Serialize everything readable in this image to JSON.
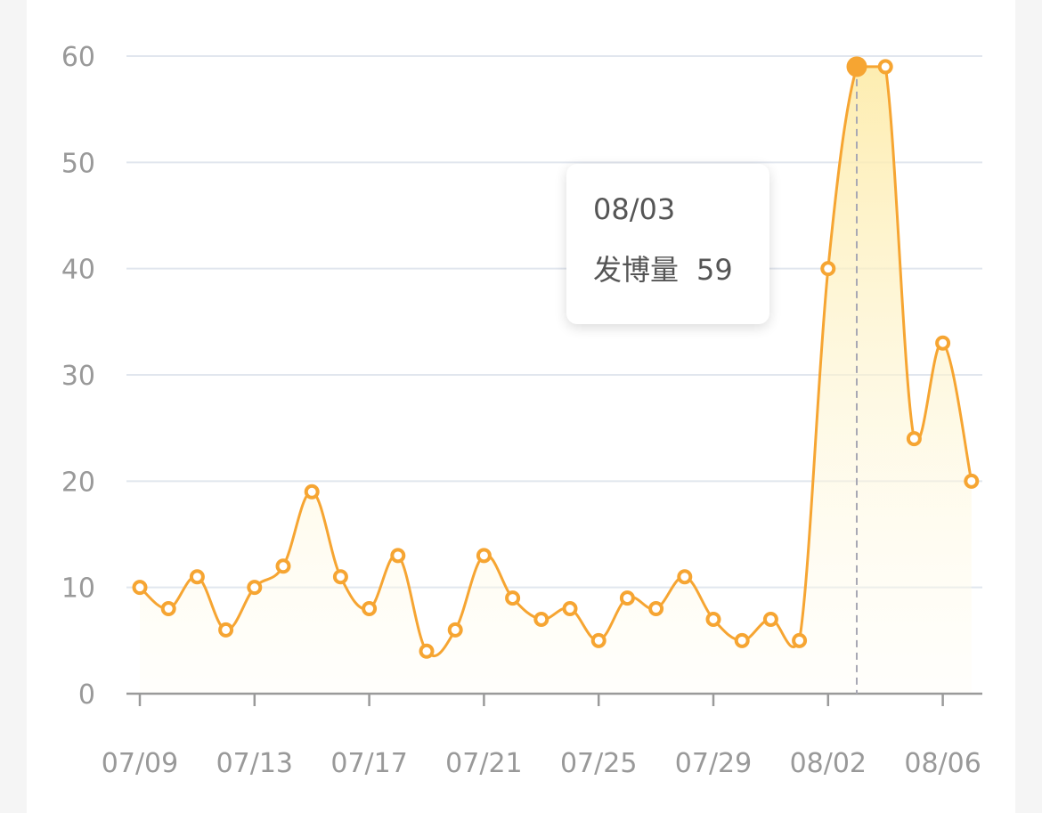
{
  "chart_data": {
    "type": "area",
    "x": [
      "07/09",
      "07/10",
      "07/11",
      "07/12",
      "07/13",
      "07/14",
      "07/15",
      "07/16",
      "07/17",
      "07/18",
      "07/19",
      "07/20",
      "07/21",
      "07/22",
      "07/23",
      "07/24",
      "07/25",
      "07/26",
      "07/27",
      "07/28",
      "07/29",
      "07/30",
      "07/31",
      "08/01",
      "08/02",
      "08/03",
      "08/04",
      "08/05",
      "08/06",
      "08/07"
    ],
    "series": [
      {
        "name": "发博量",
        "values": [
          10,
          8,
          11,
          6,
          10,
          12,
          19,
          11,
          8,
          13,
          4,
          6,
          13,
          9,
          7,
          8,
          5,
          9,
          8,
          11,
          7,
          5,
          7,
          5,
          40,
          59,
          59,
          24,
          33,
          20
        ]
      }
    ],
    "x_tick_labels": [
      "07/09",
      "07/13",
      "07/17",
      "07/21",
      "07/25",
      "07/29",
      "08/02",
      "08/06"
    ],
    "y_tick_labels": [
      "0",
      "10",
      "20",
      "30",
      "40",
      "50",
      "60"
    ],
    "ylim": [
      0,
      60
    ],
    "grid": true,
    "line_color": "#f6a532",
    "area_color_top": "#fdeeb0",
    "tooltip": {
      "date": "08/03",
      "series_label": "发博量",
      "value": "59"
    }
  }
}
